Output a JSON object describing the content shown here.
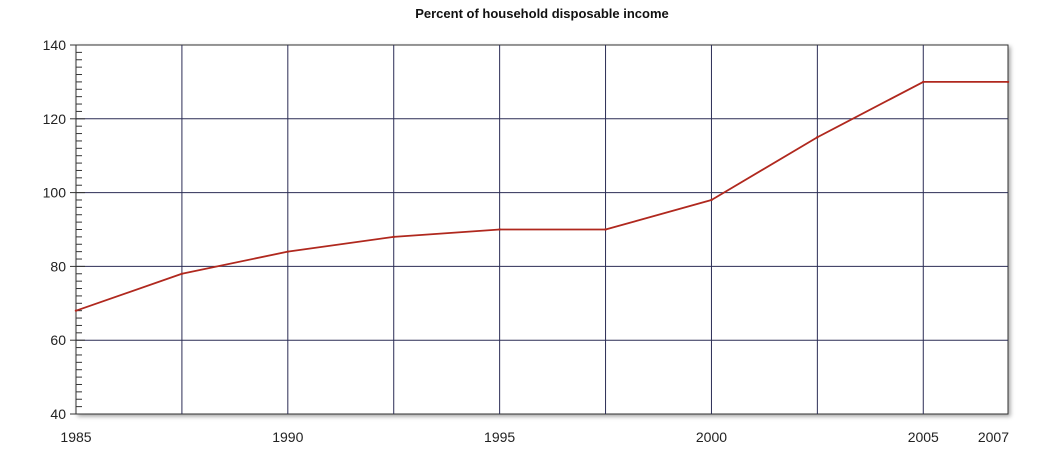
{
  "chart_data": {
    "type": "line",
    "title": "Percent of household disposable income",
    "xlabel": "",
    "ylabel": "",
    "xlim": [
      1985,
      2007
    ],
    "ylim": [
      40,
      140
    ],
    "grid": true,
    "x_ticks": [
      1985,
      1990,
      1995,
      2000,
      2005,
      2007
    ],
    "y_ticks": [
      40,
      60,
      80,
      100,
      120,
      140
    ],
    "x_gridlines": [
      1987.5,
      1990,
      1992.5,
      1995,
      1997.5,
      2000,
      2002.5,
      2005
    ],
    "colors": {
      "line": "#b0281e",
      "grid": "#2b2d55",
      "frame": "#333333"
    },
    "series": [
      {
        "x": [
          1985,
          1987.5,
          1990,
          1992.5,
          1995,
          1997.5,
          2000,
          2002.5,
          2005,
          2007
        ],
        "values": [
          68,
          78,
          84,
          88,
          90,
          90,
          98,
          115,
          130,
          130
        ]
      }
    ]
  }
}
